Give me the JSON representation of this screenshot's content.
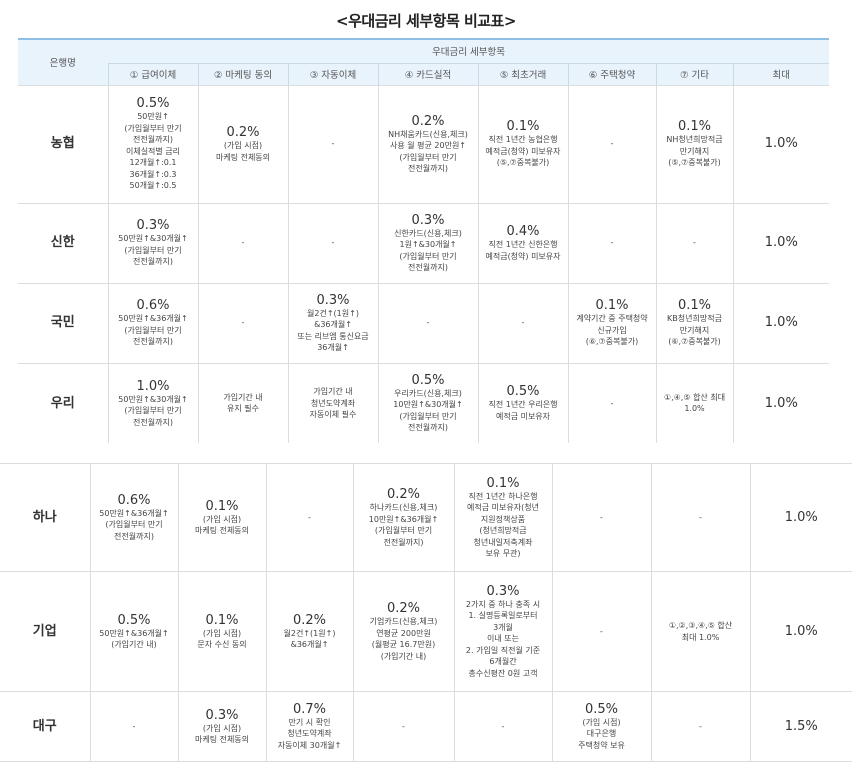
{
  "title": "<우대금리 세부항목 비교표>",
  "header": {
    "bank": "은행명",
    "group": "우대금리 세부항목",
    "cols": [
      "① 급여이체",
      "② 마케팅 동의",
      "③ 자동이체",
      "④ 카드실적",
      "⑤ 최초거래",
      "⑥ 주택청약",
      "⑦ 기타",
      "최대"
    ]
  },
  "rows_top": [
    {
      "bank": "농협",
      "cells": [
        {
          "rate": "0.5%",
          "desc": "50만원↑\n(가입월부터 만기\n전전월까지)\n이체실적별 금리\n12개월↑:0.1\n36개월↑:0.3\n50개월↑:0.5"
        },
        {
          "rate": "0.2%",
          "desc": "(가입 시점)\n마케팅 전체동의"
        },
        {
          "rate": "",
          "desc": "-"
        },
        {
          "rate": "0.2%",
          "desc": "NH채움카드(신용,체크)\n사용 월 평균 20만원↑\n(가입월부터 만기\n전전월까지)"
        },
        {
          "rate": "0.1%",
          "desc": "직전 1년간 농협은행\n예적금(청약) 미보유자\n(⑤,⑦중복불가)"
        },
        {
          "rate": "",
          "desc": "-"
        },
        {
          "rate": "0.1%",
          "desc": "NH청년희망적금\n만기해지\n(⑤,⑦중복불가)"
        }
      ],
      "max": "1.0%"
    },
    {
      "bank": "신한",
      "cells": [
        {
          "rate": "0.3%",
          "desc": "50만원↑&30개월↑\n(가입월부터 만기\n전전월까지)"
        },
        {
          "rate": "",
          "desc": "-"
        },
        {
          "rate": "",
          "desc": "-"
        },
        {
          "rate": "0.3%",
          "desc": "신한카드(신용,체크)\n1원↑&30개월↑\n(가입월부터 만기\n전전월까지)"
        },
        {
          "rate": "0.4%",
          "desc": "직전 1년간 신한은행\n예적금(청약) 미보유자"
        },
        {
          "rate": "",
          "desc": "-"
        },
        {
          "rate": "",
          "desc": "-"
        }
      ],
      "max": "1.0%"
    },
    {
      "bank": "국민",
      "cells": [
        {
          "rate": "0.6%",
          "desc": "50만원↑&36개월↑\n(가입월부터 만기\n전전월까지)"
        },
        {
          "rate": "",
          "desc": "-"
        },
        {
          "rate": "0.3%",
          "desc": "월2건↑(1원↑)\n&36개월↑\n또는 리브엠 통신요금\n36개월↑"
        },
        {
          "rate": "",
          "desc": "-"
        },
        {
          "rate": "",
          "desc": "-"
        },
        {
          "rate": "0.1%",
          "desc": "계약기간 중 주택청약\n신규가입\n(⑥,⑦중복불가)"
        },
        {
          "rate": "0.1%",
          "desc": "KB청년희망적금\n만기해지\n(⑥,⑦중복불가)"
        }
      ],
      "max": "1.0%"
    },
    {
      "bank": "우리",
      "cells": [
        {
          "rate": "1.0%",
          "desc": "50만원↑&30개월↑\n(가입월부터 만기\n전전월까지)"
        },
        {
          "rate": "",
          "desc": "가입기간 내\n유지 필수"
        },
        {
          "rate": "",
          "desc": "가입기간 내\n청년도약계좌\n자동이체 필수"
        },
        {
          "rate": "0.5%",
          "desc": "우리카드(신용,체크)\n10만원↑&30개월↑\n(가입월부터 만기\n전전월까지)"
        },
        {
          "rate": "0.5%",
          "desc": "직전 1년간 우리은행\n예적금 미보유자"
        },
        {
          "rate": "",
          "desc": "-"
        },
        {
          "rate": "",
          "desc": "①,④,⑤ 합산 최대\n1.0%"
        }
      ],
      "max": "1.0%"
    }
  ],
  "rows_bottom": [
    {
      "bank": "하나",
      "cells": [
        {
          "rate": "0.6%",
          "desc": "50만원↑&36개월↑\n(가입월부터 만기\n전전월까지)"
        },
        {
          "rate": "0.1%",
          "desc": "(가입 시점)\n마케팅 전체동의"
        },
        {
          "rate": "",
          "desc": "-"
        },
        {
          "rate": "0.2%",
          "desc": "하나카드(신용,체크)\n10만원↑&36개월↑\n(가입월부터 만기\n전전월까지)"
        },
        {
          "rate": "0.1%",
          "desc": "직전 1년간 하나은행\n예적금 미보유자(청년\n지원정책상품\n(청년희망적금\n청년내일저축계좌\n보유 무관)"
        },
        {
          "rate": "",
          "desc": "-"
        },
        {
          "rate": "",
          "desc": "-"
        }
      ],
      "max": "1.0%"
    },
    {
      "bank": "기업",
      "cells": [
        {
          "rate": "0.5%",
          "desc": "50만원↑&36개월↑\n(가입기간 내)"
        },
        {
          "rate": "0.1%",
          "desc": "(가입 시점)\n문자 수신 동의"
        },
        {
          "rate": "0.2%",
          "desc": "월2건↑(1원↑)\n&36개월↑"
        },
        {
          "rate": "0.2%",
          "desc": "기업카드(신용,체크)\n연평균 200만원\n(월평균 16.7만원)\n(가입기간 내)"
        },
        {
          "rate": "0.3%",
          "desc": "2가지 중 하나 충족 시\n1. 실명등록일로부터\n3개월\n이내 또는\n2. 가입일 직전월 기준\n6개월간\n총수신평잔 0원 고객"
        },
        {
          "rate": "",
          "desc": "-"
        },
        {
          "rate": "",
          "desc": "①,②,③,④,⑤ 합산\n최대 1.0%"
        }
      ],
      "max": "1.0%"
    },
    {
      "bank": "대구",
      "cells": [
        {
          "rate": "",
          "desc": "-"
        },
        {
          "rate": "0.3%",
          "desc": "(가입 시점)\n마케팅 전체동의"
        },
        {
          "rate": "0.7%",
          "desc": "만기 시 확인\n청년도약계좌\n자동이체 30개월↑"
        },
        {
          "rate": "",
          "desc": "-"
        },
        {
          "rate": "",
          "desc": "-"
        },
        {
          "rate": "0.5%",
          "desc": "(가입 시점)\n대구은행\n주택청약 보유"
        },
        {
          "rate": "",
          "desc": "-"
        }
      ],
      "max": "1.5%"
    }
  ]
}
